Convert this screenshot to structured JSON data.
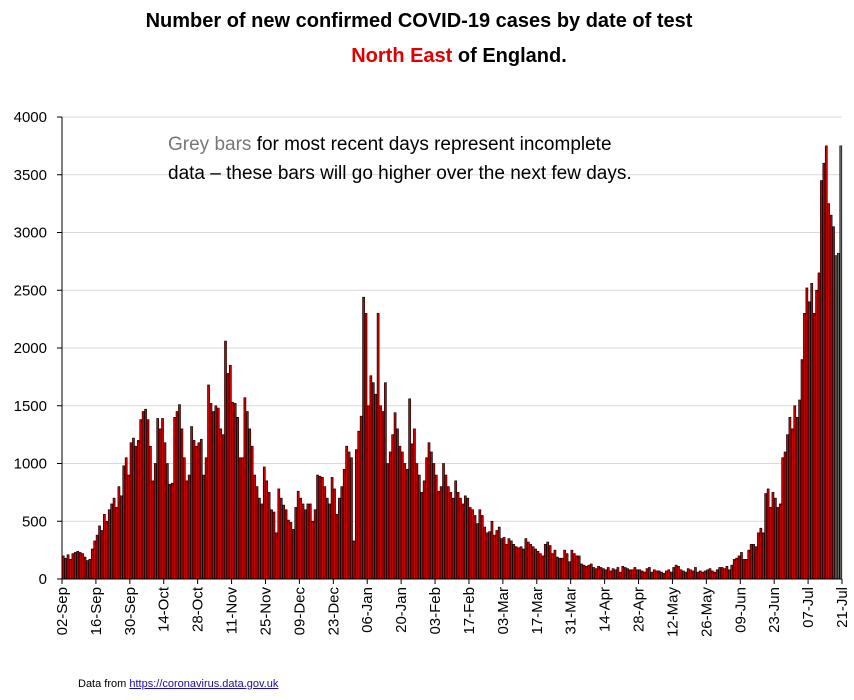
{
  "chart_data": {
    "type": "bar",
    "title_line1": "Number of new confirmed COVID-19 cases by date of test",
    "title_region": "North East",
    "title_suffix": " of England.",
    "annotation_grey": "Grey bars",
    "annotation_line1_rest": " for most recent days represent incomplete",
    "annotation_line2": "data – these bars will go higher over the next few days.",
    "source_prefix": "Data from ",
    "source_link": "https://coronavirus.data.gov.uk",
    "ylim": [
      0,
      4000
    ],
    "yticks": [
      0,
      500,
      1000,
      1500,
      2000,
      2500,
      3000,
      3500,
      4000
    ],
    "xtick_labels": [
      "02-Sep",
      "16-Sep",
      "30-Sep",
      "14-Oct",
      "28-Oct",
      "11-Nov",
      "25-Nov",
      "09-Dec",
      "23-Dec",
      "06-Jan",
      "20-Jan",
      "03-Feb",
      "17-Feb",
      "03-Mar",
      "17-Mar",
      "31-Mar",
      "14-Apr",
      "28-Apr",
      "12-May",
      "26-May",
      "09-Jun",
      "23-Jun",
      "07-Jul",
      "21-Jul"
    ],
    "start_date": "02-Sep",
    "days_total": 322,
    "bar_color": "#cc0000",
    "incomplete_color": "#666666",
    "incomplete_count": 3,
    "values": [
      200,
      180,
      210,
      170,
      220,
      230,
      240,
      230,
      220,
      190,
      160,
      170,
      260,
      330,
      380,
      460,
      420,
      560,
      500,
      600,
      650,
      700,
      620,
      800,
      720,
      980,
      1050,
      900,
      1180,
      1220,
      1150,
      1200,
      1380,
      1450,
      1470,
      1380,
      1150,
      850,
      1000,
      1390,
      1300,
      1390,
      1180,
      1000,
      820,
      830,
      1400,
      1450,
      1510,
      1300,
      1050,
      850,
      900,
      1320,
      1200,
      1150,
      1180,
      1210,
      900,
      1050,
      1680,
      1520,
      1450,
      1500,
      1480,
      1300,
      1250,
      2060,
      1780,
      1850,
      1530,
      1520,
      1400,
      1050,
      1050,
      1570,
      1450,
      1300,
      1150,
      900,
      800,
      700,
      650,
      970,
      850,
      750,
      600,
      580,
      400,
      780,
      700,
      640,
      600,
      510,
      490,
      430,
      620,
      760,
      700,
      650,
      600,
      650,
      650,
      500,
      600,
      900,
      890,
      880,
      800,
      700,
      650,
      880,
      780,
      560,
      700,
      800,
      950,
      1150,
      1100,
      1050,
      330,
      1120,
      1280,
      1410,
      2440,
      2300,
      1500,
      1760,
      1700,
      1600,
      2300,
      1500,
      1450,
      1700,
      1000,
      1100,
      1250,
      1440,
      1300,
      1150,
      1100,
      1000,
      950,
      1560,
      1170,
      1300,
      1000,
      900,
      750,
      850,
      1050,
      1180,
      1100,
      1000,
      900,
      760,
      800,
      1000,
      900,
      800,
      750,
      700,
      850,
      750,
      700,
      650,
      720,
      700,
      620,
      600,
      550,
      480,
      600,
      550,
      450,
      400,
      410,
      500,
      380,
      420,
      450,
      350,
      360,
      300,
      350,
      330,
      300,
      280,
      270,
      280,
      260,
      350,
      320,
      300,
      280,
      260,
      240,
      220,
      200,
      300,
      320,
      290,
      220,
      250,
      190,
      180,
      180,
      250,
      220,
      150,
      250,
      220,
      200,
      200,
      130,
      120,
      110,
      120,
      130,
      100,
      90,
      110,
      100,
      90,
      80,
      100,
      70,
      90,
      80,
      100,
      60,
      110,
      100,
      90,
      80,
      80,
      100,
      80,
      80,
      70,
      60,
      90,
      100,
      60,
      80,
      70,
      70,
      60,
      50,
      70,
      80,
      60,
      100,
      120,
      110,
      80,
      70,
      60,
      90,
      80,
      70,
      100,
      60,
      70,
      60,
      70,
      80,
      90,
      70,
      60,
      80,
      100,
      100,
      90,
      110,
      80,
      120,
      170,
      180,
      200,
      230,
      170,
      170,
      250,
      300,
      300,
      280,
      400,
      440,
      400,
      740,
      780,
      620,
      750,
      700,
      620,
      650,
      1050,
      1100,
      1250,
      1400,
      1300,
      1500,
      1400,
      1550,
      1900,
      2300,
      2520,
      2400,
      2560,
      2300,
      2500,
      2650,
      3450,
      3600,
      3750,
      3250,
      3150,
      3050,
      2800,
      2820,
      3750
    ]
  }
}
